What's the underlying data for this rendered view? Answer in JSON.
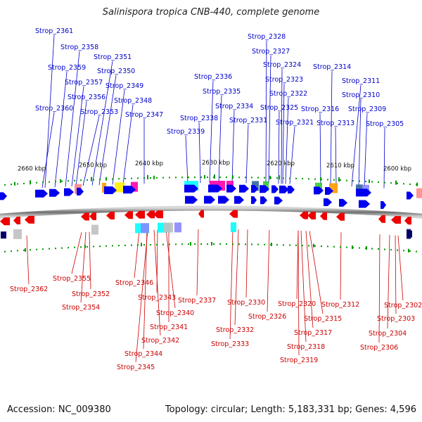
{
  "title": "Salinispora tropica CNB-440, complete genome",
  "accession": "Accession: NC_009380",
  "topology": "Topology: circular; Length: 5,183,331 bp; Genes: 4,596",
  "colors": {
    "forward_gene": "#0000ee",
    "reverse_gene": "#ee0000",
    "forward_label": "#0000cc",
    "reverse_label": "#cc0000",
    "backbone": "#808080",
    "tick": "#009900",
    "annotation_colors": [
      "#00ffff",
      "#ff00aa",
      "#33cc33",
      "#ff9900",
      "#ffee00",
      "#8888ff",
      "#c0c0c0"
    ]
  },
  "kbp_ticks": [
    "2660 kbp",
    "2650 kbp",
    "2640 kbp",
    "2630 kbp",
    "2620 kbp",
    "2610 kbp",
    "2600 kbp"
  ],
  "forward_genes": [
    "Strop_2361",
    "Strop_2360",
    "Strop_2359",
    "Strop_2358",
    "Strop_2357",
    "Strop_2356",
    "Strop_2353",
    "Strop_2351",
    "Strop_2350",
    "Strop_2349",
    "Strop_2348",
    "Strop_2347",
    "Strop_2339",
    "Strop_2338",
    "Strop_2336",
    "Strop_2335",
    "Strop_2334",
    "Strop_2331",
    "Strop_2328",
    "Strop_2327",
    "Strop_2325",
    "Strop_2324",
    "Strop_2323",
    "Strop_2322",
    "Strop_2321",
    "Strop_2316",
    "Strop_2314",
    "Strop_2313",
    "Strop_2311",
    "Strop_2310",
    "Strop_2309",
    "Strop_2305"
  ],
  "reverse_genes": [
    "Strop_2362",
    "Strop_2355",
    "Strop_2352",
    "Strop_2354",
    "Strop_2346",
    "Strop_2343",
    "Strop_2340",
    "Strop_2341",
    "Strop_2342",
    "Strop_2344",
    "Strop_2345",
    "Strop_2337",
    "Strop_2330",
    "Strop_2332",
    "Strop_2333",
    "Strop_2326",
    "Strop_2320",
    "Strop_2317",
    "Strop_2318",
    "Strop_2319",
    "Strop_2315",
    "Strop_2312",
    "Strop_2302",
    "Strop_2303",
    "Strop_2304",
    "Strop_2306"
  ]
}
